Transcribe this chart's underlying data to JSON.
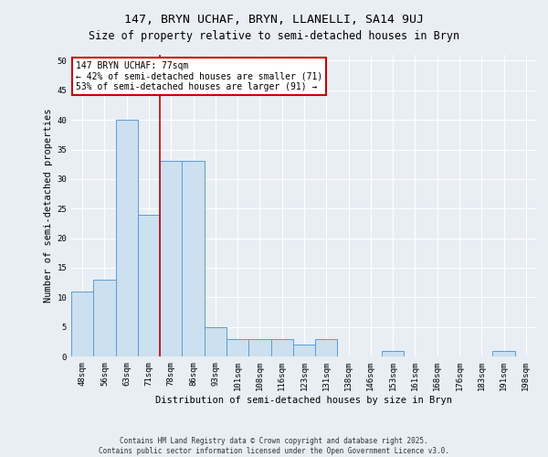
{
  "title": "147, BRYN UCHAF, BRYN, LLANELLI, SA14 9UJ",
  "subtitle": "Size of property relative to semi-detached houses in Bryn",
  "xlabel": "Distribution of semi-detached houses by size in Bryn",
  "ylabel": "Number of semi-detached properties",
  "categories": [
    "48sqm",
    "56sqm",
    "63sqm",
    "71sqm",
    "78sqm",
    "86sqm",
    "93sqm",
    "101sqm",
    "108sqm",
    "116sqm",
    "123sqm",
    "131sqm",
    "138sqm",
    "146sqm",
    "153sqm",
    "161sqm",
    "168sqm",
    "176sqm",
    "183sqm",
    "191sqm",
    "198sqm"
  ],
  "values": [
    11,
    13,
    40,
    24,
    33,
    33,
    5,
    3,
    3,
    3,
    2,
    3,
    0,
    0,
    1,
    0,
    0,
    0,
    0,
    1,
    0
  ],
  "bar_color": "#cce0f0",
  "bar_edge_color": "#5b9bd5",
  "background_color": "#e8eef4",
  "grid_color": "#ffffff",
  "subject_line_color": "#cc0000",
  "annotation_text": "147 BRYN UCHAF: 77sqm\n← 42% of semi-detached houses are smaller (71)\n53% of semi-detached houses are larger (91) →",
  "annotation_box_color": "#cc0000",
  "ylim": [
    0,
    51
  ],
  "yticks": [
    0,
    5,
    10,
    15,
    20,
    25,
    30,
    35,
    40,
    45,
    50
  ],
  "footer": "Contains HM Land Registry data © Crown copyright and database right 2025.\nContains public sector information licensed under the Open Government Licence v3.0.",
  "title_fontsize": 9.5,
  "subtitle_fontsize": 8.5,
  "axis_label_fontsize": 7.5,
  "tick_fontsize": 6.5,
  "annotation_fontsize": 7,
  "footer_fontsize": 5.5
}
